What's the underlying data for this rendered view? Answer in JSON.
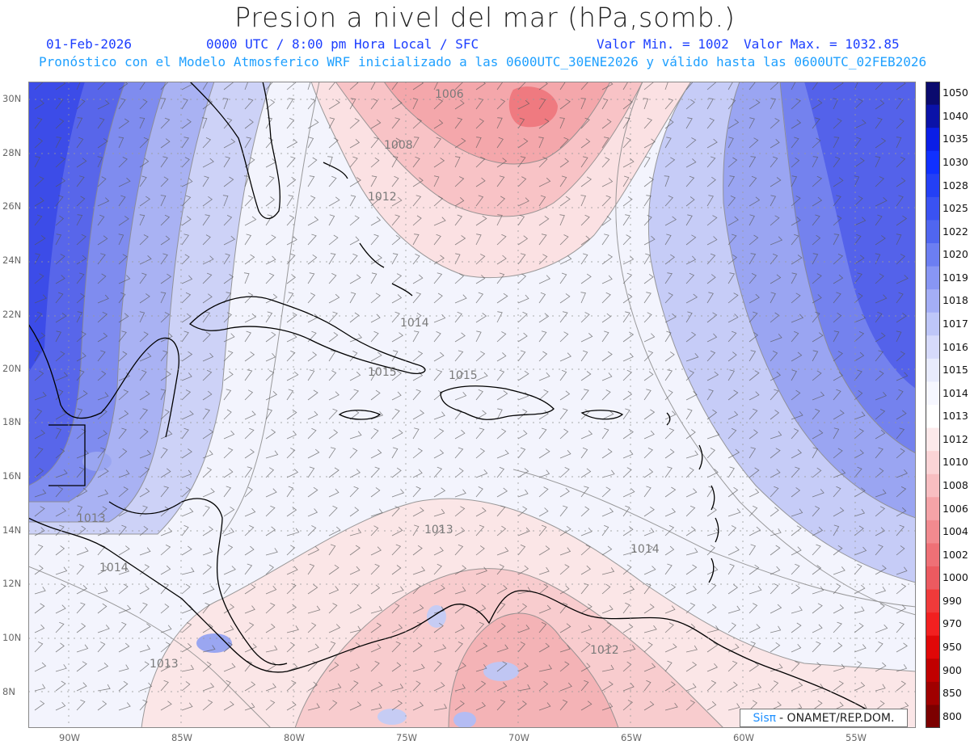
{
  "header": {
    "title": "Presion a nivel del mar (hPa,somb.)",
    "date": "01-Feb-2026",
    "time": "0000 UTC / 8:00 pm Hora Local / SFC",
    "min": "Valor Min. = 1002",
    "max": "Valor Max. = 1032.85",
    "model_line": "Pronóstico con el Modelo Atmosferico WRF inicializado a las 0600UTC_30ENE2026 y válido hasta las  0600UTC_02FEB2026"
  },
  "axes": {
    "lat_labels": [
      "30N",
      "28N",
      "26N",
      "24N",
      "22N",
      "20N",
      "18N",
      "16N",
      "14N",
      "12N",
      "10N",
      "8N"
    ],
    "lon_labels": [
      "90W",
      "85W",
      "80W",
      "75W",
      "70W",
      "65W",
      "60W",
      "55W"
    ]
  },
  "colorbar": {
    "labels": [
      "1050",
      "1040",
      "1035",
      "1030",
      "1028",
      "1025",
      "1022",
      "1020",
      "1019",
      "1018",
      "1017",
      "1016",
      "1015",
      "1014",
      "1013",
      "1012",
      "1010",
      "1008",
      "1006",
      "1004",
      "1002",
      "1000",
      "990",
      "970",
      "950",
      "900",
      "850",
      "800"
    ],
    "colors": [
      "#0a0a6e",
      "#0a12a8",
      "#0a1ee6",
      "#1030ff",
      "#2440f5",
      "#3a52f2",
      "#5066f0",
      "#6c7ef2",
      "#8896f4",
      "#a4aef6",
      "#bec6f8",
      "#d6dafb",
      "#e8ebfd",
      "#f6f7ff",
      "#ffffff",
      "#fde9ea",
      "#fbd4d6",
      "#f8bec1",
      "#f5a3a7",
      "#f28a8f",
      "#ef7076",
      "#ec5a60",
      "#f03a3a",
      "#f22020",
      "#e00808",
      "#c00000",
      "#a00000",
      "#7c0000"
    ]
  },
  "contour_labels": [
    {
      "text": "1006"
    },
    {
      "text": "1008"
    },
    {
      "text": "1012"
    },
    {
      "text": "1014"
    },
    {
      "text": "1015"
    },
    {
      "text": "1015"
    },
    {
      "text": "1013"
    },
    {
      "text": "1013"
    },
    {
      "text": "1014"
    },
    {
      "text": "1014"
    },
    {
      "text": "1012"
    },
    {
      "text": "1013"
    }
  ],
  "credit": {
    "logo": "Sisπ",
    "org": "- ONAMET/REP.DOM."
  }
}
